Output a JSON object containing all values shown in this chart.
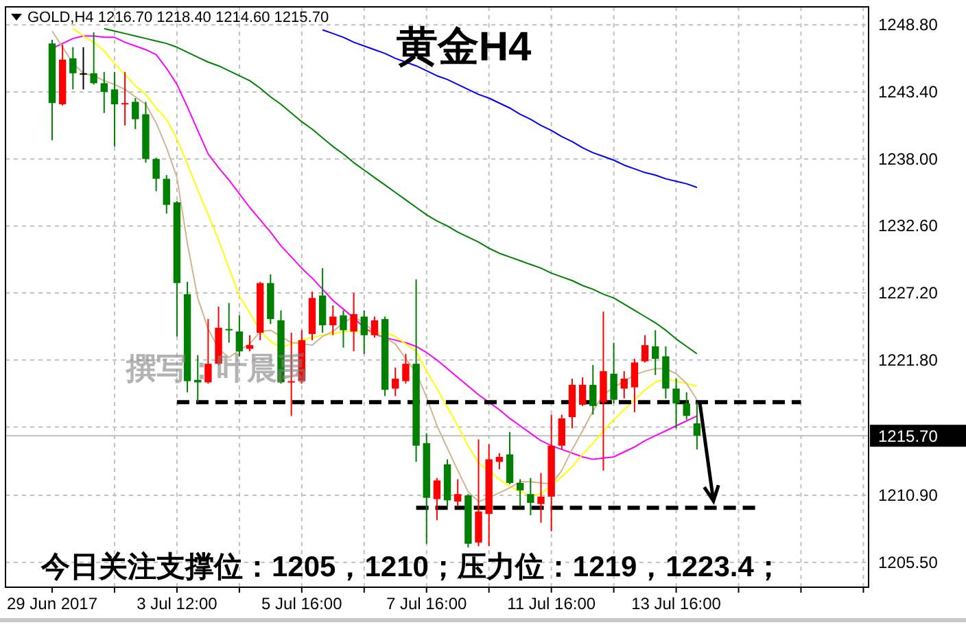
{
  "chart_data": {
    "type": "candlestick",
    "title": "黄金H4",
    "subtitle": "GOLD,H4  1216.70 1218.40 1214.60 1215.70",
    "annotations": [
      "今日关注支撑位：1205，1210；压力位：1219，1223.4；",
      "撰写：叶晨禹"
    ],
    "categories": [
      "29 Jun 2017",
      null,
      null,
      null,
      null,
      null,
      null,
      null,
      null,
      null,
      null,
      null,
      "3 Jul 12:00",
      null,
      null,
      null,
      null,
      null,
      null,
      null,
      null,
      null,
      null,
      null,
      "5 Jul 16:00",
      null,
      null,
      null,
      null,
      null,
      null,
      null,
      null,
      null,
      null,
      null,
      "7 Jul 16:00",
      null,
      null,
      null,
      null,
      null,
      null,
      null,
      null,
      null,
      null,
      null,
      "11 Jul 16:00",
      null,
      null,
      null,
      null,
      null,
      null,
      null,
      null,
      null,
      null,
      null,
      "13 Jul 16:00",
      null,
      null,
      null,
      null,
      null,
      null,
      null,
      null,
      null,
      null,
      null,
      null,
      null,
      null,
      null,
      null,
      null,
      null
    ],
    "ylim": [
      1203.5,
      1250.25
    ],
    "yticks": [
      {
        "value": 1205.5,
        "label": "1205.50"
      },
      {
        "value": 1210.9,
        "label": "1210.90"
      },
      {
        "value": 1216.4,
        "label": null
      },
      {
        "value": 1221.8,
        "label": "1221.80"
      },
      {
        "value": 1227.2,
        "label": "1227.20"
      },
      {
        "value": 1232.6,
        "label": "1232.60"
      },
      {
        "value": 1238.0,
        "label": "1238.00"
      },
      {
        "value": 1243.4,
        "label": "1243.40"
      },
      {
        "value": 1248.8,
        "label": "1248.80"
      }
    ],
    "grid": true,
    "ref_lines": [
      {
        "axis": "y",
        "value": 1215.7,
        "label": "1215.70",
        "color": "#c0c0c0"
      }
    ],
    "series": [
      {
        "type": "line",
        "color": "#0000ff",
        "values": [
          null,
          null,
          null,
          null,
          null,
          null,
          null,
          null,
          null,
          null,
          null,
          null,
          null,
          null,
          null,
          null,
          null,
          null,
          null,
          null,
          null,
          null,
          null,
          null,
          null,
          null,
          1248.4,
          1248.1,
          1247.8,
          1247.4,
          1247.1,
          1246.8,
          1246.5,
          1246.1,
          1245.8,
          1245.5,
          1245.1,
          1244.7,
          1244.4,
          1244.0,
          1243.6,
          1243.2,
          1242.9,
          1242.5,
          1242.1,
          1241.6,
          1241.2,
          1240.7,
          1240.3,
          1239.8,
          1239.4,
          1238.9,
          1238.5,
          1238.2,
          1237.9,
          1237.5,
          1237.2,
          1236.9,
          1236.7,
          1236.4,
          1236.2,
          1236.0,
          1235.7,
          null,
          null,
          null,
          null,
          null,
          null,
          null,
          null,
          null,
          null,
          null,
          null,
          null,
          null,
          null,
          null
        ]
      },
      {
        "type": "line",
        "color": "#008000",
        "values": [
          null,
          null,
          null,
          null,
          null,
          1248.5,
          1248.3,
          1248.1,
          1247.9,
          1247.7,
          1247.5,
          1247.3,
          1247.0,
          1246.6,
          1246.2,
          1245.8,
          1245.5,
          1245.1,
          1244.7,
          1244.3,
          1243.7,
          1243.0,
          1242.4,
          1241.7,
          1241.0,
          1240.4,
          1239.7,
          1239.0,
          1238.4,
          1237.7,
          1237.1,
          1236.5,
          1235.9,
          1235.3,
          1234.7,
          1234.1,
          1233.5,
          1233.0,
          1232.6,
          1232.1,
          1231.7,
          1231.3,
          1230.8,
          1230.4,
          1230.1,
          1229.8,
          1229.5,
          1229.2,
          1228.8,
          1228.5,
          1228.2,
          1227.8,
          1227.5,
          1227.1,
          1226.8,
          1226.3,
          1225.8,
          1225.3,
          1224.8,
          1224.2,
          1223.5,
          1222.9,
          1222.3,
          null,
          null,
          null,
          null,
          null,
          null,
          null,
          null,
          null,
          null,
          null,
          null,
          null,
          null,
          null,
          null
        ]
      },
      {
        "type": "line",
        "color": "#ff00ff",
        "values": [
          1246.9,
          1247.3,
          1247.7,
          1247.9,
          1247.9,
          1247.8,
          1247.8,
          1247.4,
          1247.1,
          1246.8,
          1246.4,
          1245.3,
          1244.0,
          1242.2,
          1240.3,
          1238.4,
          1237.3,
          1236.3,
          1235.2,
          1234.1,
          1233.1,
          1232.1,
          1231.0,
          1230.1,
          1229.2,
          1228.4,
          1227.5,
          1226.6,
          1225.9,
          1225.2,
          1224.4,
          1223.9,
          1223.6,
          1223.4,
          1223.2,
          1222.9,
          1222.4,
          1221.8,
          1221.1,
          1220.4,
          1219.7,
          1219.0,
          1218.4,
          1217.8,
          1217.1,
          1216.5,
          1215.9,
          1215.3,
          1214.9,
          1214.6,
          1214.3,
          1214.0,
          1213.8,
          1213.9,
          1214.0,
          1214.4,
          1214.8,
          1215.3,
          1215.7,
          1216.1,
          1216.5,
          1216.9,
          1217.3,
          null,
          null,
          null,
          null,
          null,
          null,
          null,
          null,
          null,
          null,
          null,
          null,
          null,
          null,
          null,
          null
        ]
      },
      {
        "type": "line",
        "color": "#ffff00",
        "values": [
          null,
          null,
          1248.5,
          1247.9,
          1247.4,
          1246.7,
          1245.7,
          1244.8,
          1243.9,
          1243.2,
          1242.1,
          1241.2,
          1239.6,
          1237.6,
          1235.5,
          1233.5,
          1231.5,
          1229.2,
          1227.0,
          1225.6,
          1224.2,
          1223.3,
          1222.8,
          1223.1,
          1223.4,
          1223.6,
          1223.8,
          1223.9,
          1224.1,
          1224.1,
          1224.1,
          1224.0,
          1224.0,
          1223.7,
          1223.1,
          1222.5,
          1220.9,
          1219.5,
          1218.0,
          1216.5,
          1214.9,
          1213.5,
          1212.9,
          1212.2,
          1211.6,
          1211.2,
          1210.9,
          1211.0,
          1211.7,
          1212.4,
          1213.2,
          1214.2,
          1215.1,
          1216.1,
          1217.0,
          1217.8,
          1218.6,
          1219.4,
          1220.0,
          1220.3,
          1220.1,
          1219.9,
          1219.7,
          null,
          null,
          null,
          null,
          null,
          null,
          null,
          null,
          null,
          null,
          null,
          null,
          null,
          null,
          null,
          null
        ]
      },
      {
        "type": "line",
        "color": "#d2b48c",
        "values": [
          1248.3,
          1247.0,
          1245.7,
          1244.9,
          1244.7,
          1244.3,
          1244.0,
          1243.6,
          1243.0,
          1242.4,
          1240.9,
          1238.9,
          1236.5,
          1231.2,
          1226.8,
          1224.3,
          1222.7,
          1222.0,
          1222.6,
          1223.1,
          1224.1,
          1224.2,
          1223.7,
          1223.2,
          1223.1,
          1223.0,
          1223.7,
          1224.1,
          1224.8,
          1225.3,
          1224.8,
          1224.0,
          1223.6,
          1223.1,
          1221.9,
          1220.8,
          1218.8,
          1216.5,
          1214.7,
          1212.9,
          1211.2,
          1210.4,
          1210.7,
          1211.1,
          1211.5,
          1212.0,
          1212.0,
          1211.9,
          1211.8,
          1212.9,
          1214.6,
          1216.1,
          1217.7,
          1219.0,
          1219.6,
          1220.1,
          1220.6,
          1220.9,
          1221.1,
          1221.1,
          1220.7,
          1219.9,
          1218.6,
          null,
          null,
          null,
          null,
          null,
          null,
          null,
          null,
          null,
          null,
          null,
          null,
          null,
          null,
          null,
          null
        ]
      },
      {
        "type": "line",
        "color": "#000000",
        "line_style": "dashed",
        "values": [
          null,
          null,
          null,
          null,
          null,
          null,
          null,
          null,
          null,
          null,
          null,
          null,
          1218.4,
          1218.4,
          1218.4,
          1218.4,
          1218.4,
          1218.4,
          1218.4,
          1218.4,
          1218.4,
          1218.4,
          1218.4,
          1218.4,
          1218.4,
          1218.4,
          1218.4,
          1218.4,
          1218.4,
          1218.4,
          1218.4,
          1218.4,
          1218.4,
          1218.4,
          1218.4,
          1218.4,
          1218.4,
          1218.4,
          1218.4,
          1218.4,
          1218.4,
          1218.4,
          1218.4,
          1218.4,
          1218.4,
          1218.4,
          1218.4,
          1218.4,
          1218.4,
          1218.4,
          1218.4,
          1218.4,
          1218.4,
          1218.4,
          1218.4,
          1218.4,
          1218.4,
          1218.4,
          1218.4,
          1218.4,
          1218.4,
          1218.4,
          1218.4,
          1218.4,
          1218.4,
          1218.4,
          1218.4,
          1218.4,
          1218.4,
          1218.4,
          1218.4,
          1218.4,
          1218.4,
          null,
          null,
          null,
          null,
          null,
          null
        ]
      },
      {
        "type": "line",
        "color": "#000000",
        "line_style": "dashed",
        "values": [
          null,
          null,
          null,
          null,
          null,
          null,
          null,
          null,
          null,
          null,
          null,
          null,
          null,
          null,
          null,
          null,
          null,
          null,
          null,
          null,
          null,
          null,
          null,
          null,
          null,
          null,
          null,
          null,
          null,
          null,
          null,
          null,
          null,
          null,
          null,
          1209.9,
          1209.9,
          1209.9,
          1209.9,
          1209.9,
          1209.9,
          1209.9,
          1209.9,
          1209.9,
          1209.9,
          1209.9,
          1209.9,
          1209.9,
          1209.9,
          1209.9,
          1209.9,
          1209.9,
          1209.9,
          1209.9,
          1209.9,
          1209.9,
          1209.9,
          1209.9,
          1209.9,
          1209.9,
          1209.9,
          1209.9,
          1209.9,
          1209.9,
          1209.9,
          1209.9,
          1209.9,
          1209.9,
          1209.9,
          null,
          null,
          null,
          null,
          null,
          null,
          null,
          null,
          null,
          null
        ]
      },
      {
        "colors": [
          "#008000",
          "#ff0000",
          "#008000",
          "#000000",
          "#008000",
          "#008000",
          "#008000",
          "#ff0000",
          "#008000",
          "#008000",
          "#008000",
          "#008000",
          "#008000",
          "#008000",
          "#008000",
          "#ff0000",
          "#ff0000",
          "#008000",
          "#008000",
          "#ff0000",
          "#ff0000",
          "#008000",
          "#008000",
          "#ff0000",
          "#ff0000",
          "#ff0000",
          "#008000",
          "#ff0000",
          "#008000",
          "#ff0000",
          "#008000",
          "#ff0000",
          "#008000",
          "#ff0000",
          "#ff0000",
          "#008000",
          "#008000",
          "#ff0000",
          "#008000",
          "#ff0000",
          "#008000",
          "#ff0000",
          "#ff0000",
          "#ff0000",
          "#008000",
          "#008000",
          "#008000",
          "#ff0000",
          "#ff0000",
          "#ff0000",
          "#ff0000",
          "#ff0000",
          "#008000",
          "#ff0000",
          "#008000",
          "#ff0000",
          "#ff0000",
          "#ff0000",
          "#008000",
          "#008000",
          "#008000",
          "#008000",
          "#008000",
          null,
          null,
          null,
          null,
          null,
          null,
          null,
          null,
          null,
          null,
          null,
          null,
          null,
          null,
          null,
          null
        ],
        "ohlc": [
          [
            1247.3,
            1247.6,
            1239.5,
            1242.5
          ],
          [
            1242.4,
            1247.2,
            1242.3,
            1246.0
          ],
          [
            1246.1,
            1247.0,
            1243.6,
            1244.9
          ],
          [
            1244.9,
            1247.0,
            1243.6,
            1244.9
          ],
          [
            1244.9,
            1248.2,
            1244.0,
            1244.1
          ],
          [
            1244.1,
            1245.0,
            1241.7,
            1243.4
          ],
          [
            1243.6,
            1245.0,
            1239.0,
            1242.4
          ],
          [
            1242.4,
            1245.0,
            1240.7,
            1242.5
          ],
          [
            1242.6,
            1242.9,
            1240.4,
            1241.2
          ],
          [
            1241.6,
            1242.6,
            1237.7,
            1238.0
          ],
          [
            1238.0,
            1238.1,
            1235.4,
            1236.4
          ],
          [
            1236.4,
            1236.7,
            1233.6,
            1234.3
          ],
          [
            1234.5,
            1234.6,
            1223.7,
            1228.0
          ],
          [
            1227.1,
            1228.1,
            1219.2,
            1220.1
          ],
          [
            1220.2,
            1222.2,
            1218.4,
            1220.0
          ],
          [
            1220.0,
            1225.1,
            1219.9,
            1221.5
          ],
          [
            1221.5,
            1226.1,
            1221.4,
            1224.4
          ],
          [
            1224.3,
            1226.4,
            1223.2,
            1224.2
          ],
          [
            1224.1,
            1225.4,
            1222.1,
            1222.5
          ],
          [
            1222.7,
            1223.8,
            1222.5,
            1223.0
          ],
          [
            1224.0,
            1228.1,
            1223.4,
            1228.0
          ],
          [
            1228.0,
            1228.7,
            1224.7,
            1225.1
          ],
          [
            1225.0,
            1225.8,
            1219.9,
            1220.0
          ],
          [
            1220.0,
            1224.0,
            1217.3,
            1220.1
          ],
          [
            1220.1,
            1224.2,
            1219.9,
            1223.4
          ],
          [
            1223.9,
            1227.3,
            1223.4,
            1226.8
          ],
          [
            1227.0,
            1229.2,
            1224.0,
            1224.6
          ],
          [
            1224.6,
            1226.2,
            1223.8,
            1225.3
          ],
          [
            1225.4,
            1225.8,
            1222.8,
            1224.2
          ],
          [
            1224.1,
            1227.2,
            1222.5,
            1225.5
          ],
          [
            1225.3,
            1225.8,
            1222.3,
            1223.8
          ],
          [
            1223.8,
            1225.3,
            1223.6,
            1225.0
          ],
          [
            1225.1,
            1225.3,
            1218.9,
            1219.4
          ],
          [
            1219.5,
            1221.2,
            1218.9,
            1220.3
          ],
          [
            1220.1,
            1222.3,
            1219.9,
            1221.5
          ],
          [
            1221.5,
            1228.3,
            1213.6,
            1214.9
          ],
          [
            1215.1,
            1215.9,
            1207.0,
            1210.7
          ],
          [
            1210.6,
            1212.3,
            1208.9,
            1212.1
          ],
          [
            1213.4,
            1213.8,
            1210.0,
            1210.5
          ],
          [
            1210.4,
            1212.2,
            1210.0,
            1211.0
          ],
          [
            1210.9,
            1211.0,
            1206.7,
            1207.0
          ],
          [
            1207.1,
            1215.4,
            1206.8,
            1209.6
          ],
          [
            1209.4,
            1215.0,
            1206.8,
            1213.8
          ],
          [
            1213.6,
            1214.3,
            1213.0,
            1214.0
          ],
          [
            1214.2,
            1216.0,
            1211.8,
            1211.9
          ],
          [
            1211.9,
            1212.2,
            1210.0,
            1211.3
          ],
          [
            1211.0,
            1212.3,
            1209.3,
            1210.3
          ],
          [
            1210.2,
            1212.7,
            1208.7,
            1210.8
          ],
          [
            1210.8,
            1217.4,
            1208.0,
            1214.9
          ],
          [
            1214.9,
            1217.4,
            1214.6,
            1217.1
          ],
          [
            1217.2,
            1220.3,
            1216.3,
            1219.8
          ],
          [
            1218.2,
            1220.4,
            1218.1,
            1219.8
          ],
          [
            1219.8,
            1221.4,
            1217.4,
            1218.1
          ],
          [
            1218.4,
            1225.7,
            1212.9,
            1220.9
          ],
          [
            1220.7,
            1223.2,
            1218.3,
            1218.6
          ],
          [
            1219.5,
            1220.9,
            1218.7,
            1220.3
          ],
          [
            1219.6,
            1221.9,
            1217.6,
            1221.6
          ],
          [
            1221.7,
            1223.8,
            1221.6,
            1223.0
          ],
          [
            1222.9,
            1224.2,
            1220.6,
            1221.9
          ],
          [
            1222.1,
            1222.9,
            1218.7,
            1219.5
          ],
          [
            1219.5,
            1220.3,
            1216.3,
            1218.3
          ],
          [
            1218.3,
            1219.2,
            1217.0,
            1217.3
          ],
          [
            1216.7,
            1218.4,
            1214.6,
            1215.7
          ],
          null,
          null,
          null,
          null,
          null,
          null,
          null,
          null,
          null,
          null,
          null,
          null,
          null,
          null,
          null,
          null
        ]
      }
    ]
  }
}
